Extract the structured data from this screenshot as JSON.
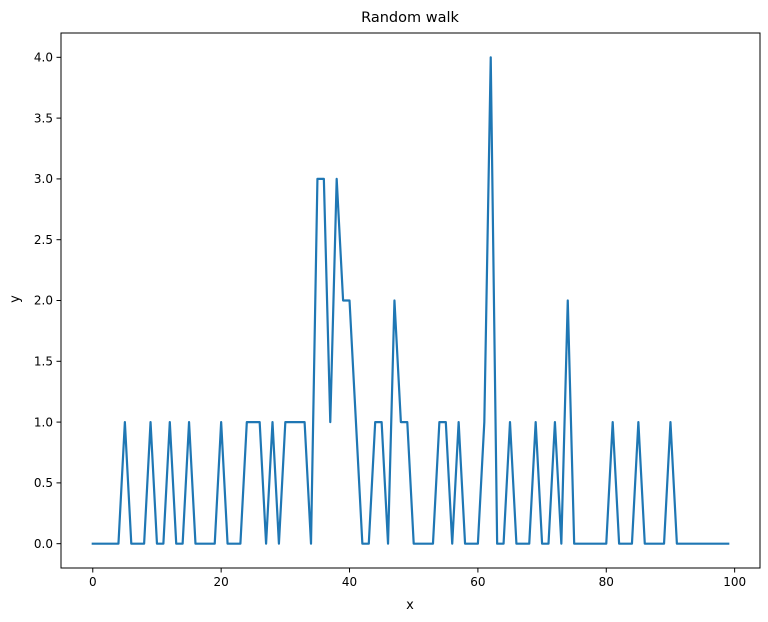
{
  "chart_data": {
    "type": "line",
    "title": "Random walk",
    "xlabel": "x",
    "ylabel": "y",
    "xlim": [
      -4.95,
      103.95
    ],
    "ylim": [
      -0.2,
      4.2
    ],
    "xticks": [
      0,
      20,
      40,
      60,
      80,
      100
    ],
    "yticks": [
      0.0,
      0.5,
      1.0,
      1.5,
      2.0,
      2.5,
      3.0,
      3.5,
      4.0
    ],
    "xtick_labels": [
      "0",
      "20",
      "40",
      "60",
      "80",
      "100"
    ],
    "ytick_labels": [
      "0.0",
      "0.5",
      "1.0",
      "1.5",
      "2.0",
      "2.5",
      "3.0",
      "3.5",
      "4.0"
    ],
    "grid": false,
    "color": "#1f77b4",
    "series": [
      {
        "x": [
          0,
          1,
          2,
          3,
          4,
          5,
          6,
          7,
          8,
          9,
          10,
          11,
          12,
          13,
          14,
          15,
          16,
          17,
          18,
          19,
          20,
          21,
          22,
          23,
          24,
          25,
          26,
          27,
          28,
          29,
          30,
          31,
          32,
          33,
          34,
          35,
          36,
          37,
          38,
          39,
          40,
          41,
          42,
          43,
          44,
          45,
          46,
          47,
          48,
          49,
          50,
          51,
          52,
          53,
          54,
          55,
          56,
          57,
          58,
          59,
          60,
          61,
          62,
          63,
          64,
          65,
          66,
          67,
          68,
          69,
          70,
          71,
          72,
          73,
          74,
          75,
          76,
          77,
          78,
          79,
          80,
          81,
          82,
          83,
          84,
          85,
          86,
          87,
          88,
          89,
          90,
          91,
          92,
          93,
          94,
          95,
          96,
          97,
          98,
          99
        ],
        "y": [
          0,
          0,
          0,
          0,
          0,
          1,
          0,
          0,
          0,
          1,
          0,
          0,
          1,
          0,
          0,
          1,
          0,
          0,
          0,
          0,
          1,
          0,
          0,
          0,
          1,
          1,
          1,
          0,
          1,
          0,
          1,
          1,
          1,
          1,
          0,
          3,
          3,
          1,
          3,
          2,
          2,
          1,
          0,
          0,
          1,
          1,
          0,
          2,
          1,
          1,
          0,
          0,
          0,
          0,
          1,
          1,
          0,
          1,
          0,
          0,
          0,
          1,
          4,
          0,
          0,
          1,
          0,
          0,
          0,
          1,
          0,
          0,
          1,
          0,
          2,
          0,
          0,
          0,
          0,
          0,
          0,
          1,
          0,
          0,
          0,
          1,
          0,
          0,
          0,
          0,
          1,
          0,
          0,
          0,
          0,
          0,
          0,
          0,
          0,
          0
        ]
      }
    ]
  }
}
